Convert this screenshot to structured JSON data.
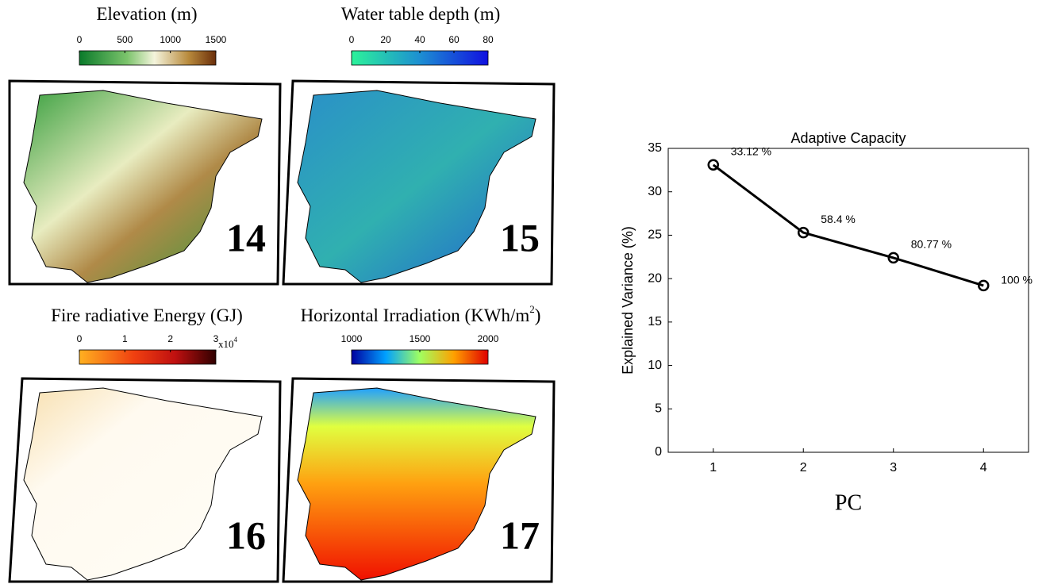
{
  "maps": [
    {
      "title": "Elevation (m)",
      "clim": [
        0,
        1500
      ],
      "ticks": [
        0,
        500,
        1000,
        1500
      ],
      "number": "14"
    },
    {
      "title": "Water table depth (m)",
      "clim": [
        0,
        80
      ],
      "ticks": [
        0,
        20,
        40,
        60,
        80
      ],
      "number": "15"
    },
    {
      "title": "Fire radiative Energy (GJ)",
      "clim": [
        0,
        3
      ],
      "ticks": [
        0,
        1,
        2,
        3
      ],
      "multiplier": "x10",
      "multiplier_exponent": "4",
      "number": "16"
    },
    {
      "title": "Horizontal Irradiation (KWh/m",
      "title_sup": "2",
      "title_end": ")",
      "clim": [
        1000,
        2000
      ],
      "ticks": [
        1000,
        1500,
        2000
      ],
      "number": "17"
    }
  ],
  "chart_data": {
    "type": "line",
    "title": "Adaptive Capacity",
    "x": [
      1,
      2,
      3,
      4
    ],
    "values": [
      33.1,
      25.3,
      22.4,
      19.2
    ],
    "annotations": [
      "33.12 %",
      "58.4 %",
      "80.77 %",
      "100 %"
    ],
    "color": "#000000",
    "xlim": [
      0.5,
      4.5
    ],
    "xticks": [
      1,
      2,
      3,
      4
    ],
    "ylim": [
      0,
      35
    ],
    "yticks": [
      0,
      5,
      10,
      15,
      20,
      25,
      30,
      35
    ],
    "xlabel": "PC",
    "ylabel": "Explained Variance (%)"
  }
}
